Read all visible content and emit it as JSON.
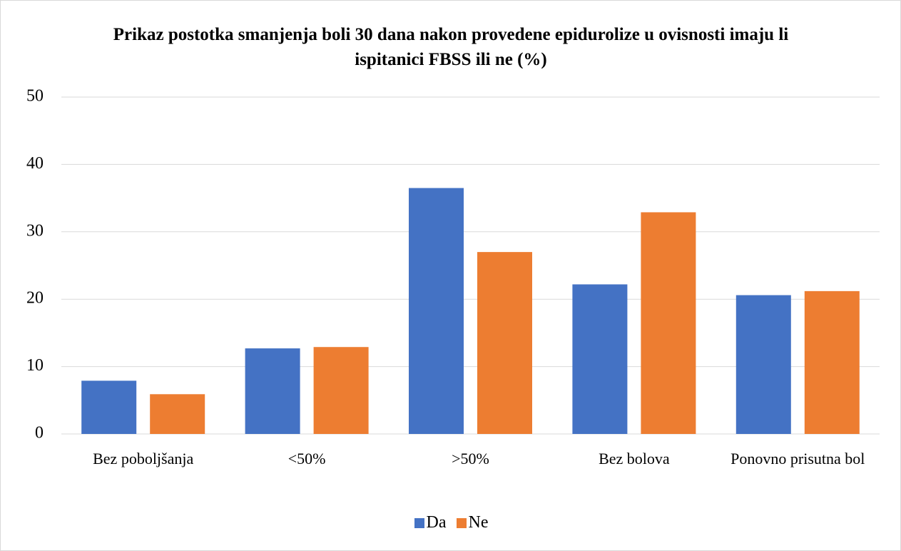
{
  "chart_data": {
    "type": "bar",
    "title": "Prikaz postotka smanjenja boli 30 dana nakon provedene epidurolize u ovisnosti imaju li ispitanici FBSS ili ne (%)",
    "categories": [
      "Bez poboljšanja",
      "<50%",
      ">50%",
      "Bez bolova",
      "Ponovno prisutna bol"
    ],
    "series": [
      {
        "name": "Da",
        "color": "#4472c4",
        "values": [
          7.9,
          12.7,
          36.5,
          22.2,
          20.6
        ]
      },
      {
        "name": "Ne",
        "color": "#ed7d31",
        "values": [
          5.9,
          12.9,
          27,
          32.9,
          21.2
        ]
      }
    ],
    "ylim": [
      0,
      50
    ],
    "yticks": [
      0,
      10,
      20,
      30,
      40,
      50
    ],
    "grid": true,
    "legend": "bottom"
  }
}
